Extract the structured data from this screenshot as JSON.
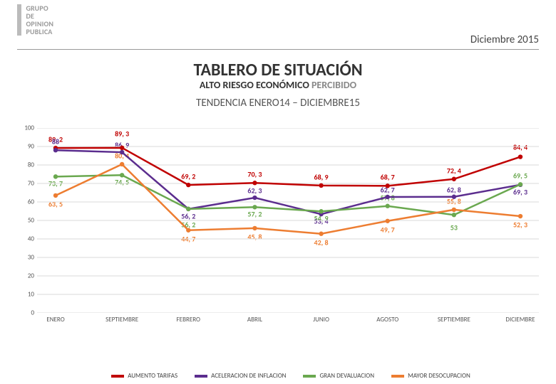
{
  "header": {
    "logo_lines": [
      "GRUPO",
      "DE",
      "OPINION",
      "PUBLICA"
    ],
    "date": "Diciembre 2015"
  },
  "titles": {
    "main": "TABLERO DE SITUACIÓN",
    "subtitle_bold": "ALTO RIESGO ECONÓMICO",
    "subtitle_light": "PERCIBIDO",
    "tendencia": "TENDENCIA ENERO14 – DICIEMBRE15"
  },
  "chart": {
    "type": "line",
    "ylim": [
      0,
      100
    ],
    "ytick_step": 10,
    "grid_color": "#d9d9d9",
    "background_color": "#ffffff",
    "x_categories": [
      "ENERO",
      "SEPTIEMBRE",
      "FEBRERO",
      "ABRIL",
      "JUNIO",
      "AGOSTO",
      "SEPTIEMBRE",
      "DICIEMBRE"
    ],
    "series": [
      {
        "name": "AUMENTO TARIFAS",
        "color": "#c00000",
        "values": [
          89.2,
          89.3,
          69.2,
          70.3,
          68.9,
          68.7,
          72.4,
          84.4
        ],
        "labels": [
          "89, 2",
          "89, 3",
          "69, 2",
          "70, 3",
          "68, 9",
          "68, 7",
          "72, 4",
          "84, 4"
        ],
        "label_dy": [
          -12,
          -20,
          -12,
          -12,
          -12,
          -12,
          -12,
          -14
        ]
      },
      {
        "name": "ACELERACION DE INFLACION",
        "color": "#5b2d8e",
        "values": [
          88,
          86.9,
          56.2,
          62.3,
          53.4,
          62.7,
          62.8,
          69.3
        ],
        "labels": [
          "88",
          "86, 9",
          "56, 2",
          "62, 3",
          "53, 4",
          "62, 7",
          "62, 8",
          "69, 3"
        ],
        "label_dy": [
          -12,
          -10,
          10,
          -10,
          10,
          -10,
          -10,
          10
        ]
      },
      {
        "name": "GRAN DEVALUACION",
        "color": "#6aa84f",
        "values": [
          73.7,
          74.5,
          56.2,
          57.2,
          54.9,
          57.8,
          53,
          69.5
        ],
        "labels": [
          "73, 7",
          "74, 5",
          "56, 2",
          "57, 2",
          "54, 9",
          "57, 8",
          "53",
          "69, 5"
        ],
        "label_dy": [
          10,
          10,
          22,
          10,
          10,
          -12,
          18,
          -12
        ]
      },
      {
        "name": "MAYOR DESOCUPACION",
        "color": "#ed7d31",
        "values": [
          63.5,
          80.4,
          44.7,
          45.8,
          42.8,
          49.7,
          55.8,
          52.3
        ],
        "labels": [
          "63, 5",
          "80, 4",
          "44, 7",
          "45, 8",
          "42, 8",
          "49, 7",
          "55, 8",
          "52, 3"
        ],
        "label_dy": [
          12,
          -12,
          12,
          12,
          12,
          12,
          -12,
          12
        ]
      }
    ]
  },
  "legend": {
    "items": [
      {
        "label": "AUMENTO TARIFAS",
        "color": "#c00000"
      },
      {
        "label": "ACELERACION DE INFLACION",
        "color": "#5b2d8e"
      },
      {
        "label": "GRAN DEVALUACION",
        "color": "#6aa84f"
      },
      {
        "label": "MAYOR DESOCUPACION",
        "color": "#ed7d31"
      }
    ]
  }
}
